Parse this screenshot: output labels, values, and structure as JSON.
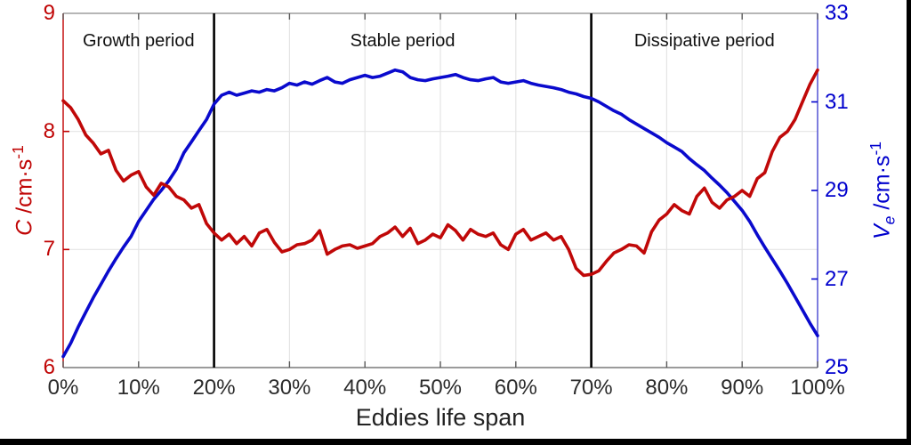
{
  "figure": {
    "xlabel": "Eddies life span",
    "x_ticks": [
      {
        "label": "0%",
        "pct": 0
      },
      {
        "label": "10%",
        "pct": 10
      },
      {
        "label": "20%",
        "pct": 20
      },
      {
        "label": "30%",
        "pct": 30
      },
      {
        "label": "40%",
        "pct": 40
      },
      {
        "label": "50%",
        "pct": 50
      },
      {
        "label": "60%",
        "pct": 60
      },
      {
        "label": "70%",
        "pct": 70
      },
      {
        "label": "80%",
        "pct": 80
      },
      {
        "label": "90%",
        "pct": 90
      },
      {
        "label": "100%",
        "pct": 100
      }
    ],
    "left_axis": {
      "variable": "C",
      "unit": " /cm·s",
      "exponent": "-1",
      "full_label": "C /cm·s⁻¹",
      "range": [
        6,
        9
      ],
      "ticks": [
        6,
        7,
        8,
        9
      ],
      "color": "#c00000"
    },
    "right_axis": {
      "variable": "V",
      "subscript": "e",
      "unit": " /cm·s",
      "exponent": "-1",
      "full_label": "Ve /cm·s⁻¹",
      "range": [
        25,
        33
      ],
      "ticks": [
        25,
        27,
        29,
        31,
        33
      ],
      "color": "#0000cd"
    },
    "periods": [
      {
        "label": "Growth period",
        "start_pct": 0,
        "end_pct": 20
      },
      {
        "label": "Stable period",
        "start_pct": 20,
        "end_pct": 70
      },
      {
        "label": "Dissipative period",
        "start_pct": 70,
        "end_pct": 100
      }
    ],
    "boundary_lines_pct": [
      20,
      70
    ]
  },
  "chart_data": {
    "type": "line",
    "title": "",
    "xlabel": "Eddies life span",
    "x_unit": "percent of eddies life span",
    "grid": true,
    "legend": false,
    "x": [
      0,
      1,
      2,
      3,
      4,
      5,
      6,
      7,
      8,
      9,
      10,
      11,
      12,
      13,
      14,
      15,
      16,
      17,
      18,
      19,
      20,
      21,
      22,
      23,
      24,
      25,
      26,
      27,
      28,
      29,
      30,
      31,
      32,
      33,
      34,
      35,
      36,
      37,
      38,
      39,
      40,
      41,
      42,
      43,
      44,
      45,
      46,
      47,
      48,
      49,
      50,
      51,
      52,
      53,
      54,
      55,
      56,
      57,
      58,
      59,
      60,
      61,
      62,
      63,
      64,
      65,
      66,
      67,
      68,
      69,
      70,
      71,
      72,
      73,
      74,
      75,
      76,
      77,
      78,
      79,
      80,
      81,
      82,
      83,
      84,
      85,
      86,
      87,
      88,
      89,
      90,
      91,
      92,
      93,
      94,
      95,
      96,
      97,
      98,
      99,
      100
    ],
    "series": [
      {
        "name": "C",
        "axis": "left",
        "ylabel": "C /cm·s⁻¹",
        "ylim": [
          6,
          9
        ],
        "yticks": [
          6,
          7,
          8,
          9
        ],
        "color": "#c00808",
        "values": [
          8.26,
          8.2,
          8.1,
          7.97,
          7.9,
          7.81,
          7.84,
          7.67,
          7.58,
          7.63,
          7.66,
          7.53,
          7.46,
          7.56,
          7.53,
          7.45,
          7.42,
          7.35,
          7.38,
          7.22,
          7.14,
          7.08,
          7.13,
          7.05,
          7.11,
          7.03,
          7.14,
          7.17,
          7.06,
          6.98,
          7.0,
          7.04,
          7.05,
          7.08,
          7.16,
          6.96,
          7.0,
          7.03,
          7.04,
          7.01,
          7.03,
          7.05,
          7.11,
          7.14,
          7.19,
          7.11,
          7.18,
          7.05,
          7.08,
          7.13,
          7.1,
          7.21,
          7.16,
          7.08,
          7.17,
          7.13,
          7.11,
          7.14,
          7.04,
          7.0,
          7.13,
          7.17,
          7.08,
          7.11,
          7.14,
          7.08,
          7.11,
          7.0,
          6.84,
          6.78,
          6.79,
          6.82,
          6.9,
          6.97,
          7.0,
          7.04,
          7.03,
          6.97,
          7.15,
          7.25,
          7.3,
          7.38,
          7.33,
          7.3,
          7.45,
          7.52,
          7.4,
          7.35,
          7.42,
          7.45,
          7.5,
          7.45,
          7.6,
          7.65,
          7.83,
          7.95,
          8.0,
          8.1,
          8.25,
          8.4,
          8.52
        ]
      },
      {
        "name": "Ve",
        "axis": "right",
        "ylabel": "Ve /cm·s⁻¹",
        "ylim": [
          25,
          33
        ],
        "yticks": [
          25,
          27,
          29,
          31,
          33
        ],
        "color": "#0a0acd",
        "values": [
          25.25,
          25.55,
          25.92,
          26.25,
          26.58,
          26.88,
          27.18,
          27.46,
          27.72,
          27.96,
          28.3,
          28.55,
          28.8,
          29.0,
          29.22,
          29.48,
          29.85,
          30.1,
          30.35,
          30.6,
          30.95,
          31.15,
          31.22,
          31.15,
          31.2,
          31.25,
          31.22,
          31.28,
          31.25,
          31.32,
          31.42,
          31.38,
          31.45,
          31.4,
          31.48,
          31.55,
          31.45,
          31.42,
          31.5,
          31.55,
          31.6,
          31.55,
          31.58,
          31.65,
          31.72,
          31.68,
          31.55,
          31.5,
          31.48,
          31.52,
          31.55,
          31.58,
          31.62,
          31.55,
          31.5,
          31.48,
          31.52,
          31.55,
          31.45,
          31.42,
          31.45,
          31.48,
          31.42,
          31.38,
          31.35,
          31.32,
          31.28,
          31.22,
          31.18,
          31.12,
          31.08,
          31.0,
          30.9,
          30.8,
          30.72,
          30.6,
          30.5,
          30.4,
          30.3,
          30.2,
          30.08,
          29.98,
          29.88,
          29.72,
          29.58,
          29.45,
          29.28,
          29.12,
          28.95,
          28.75,
          28.55,
          28.3,
          28.0,
          27.72,
          27.45,
          27.18,
          26.9,
          26.6,
          26.3,
          26.0,
          25.72
        ]
      }
    ],
    "annotations": {
      "vlines_percent": [
        20,
        70
      ],
      "period_labels": [
        "Growth period",
        "Stable period",
        "Dissipative period"
      ]
    }
  }
}
